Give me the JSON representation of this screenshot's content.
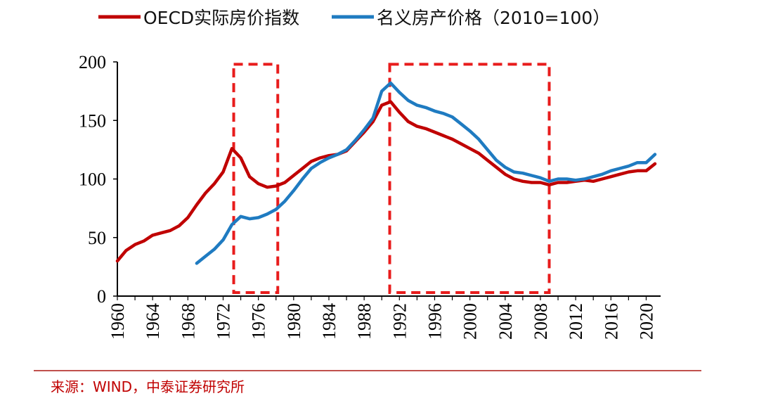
{
  "chart_data": {
    "type": "line",
    "ylim": [
      0,
      200
    ],
    "yticks": [
      "0",
      "50",
      "100",
      "150",
      "200"
    ],
    "xlim": [
      1960,
      2021
    ],
    "xticks": [
      "1960",
      "1964",
      "1968",
      "1972",
      "1976",
      "1980",
      "1984",
      "1988",
      "1992",
      "1996",
      "2000",
      "2004",
      "2008",
      "2012",
      "2016",
      "2020"
    ],
    "legend_position": "top",
    "series": [
      {
        "name": "OECD实际房价指数",
        "color": "#c00000",
        "points": [
          [
            1960,
            30
          ],
          [
            1961,
            39
          ],
          [
            1962,
            44
          ],
          [
            1963,
            47
          ],
          [
            1964,
            52
          ],
          [
            1965,
            54
          ],
          [
            1966,
            56
          ],
          [
            1967,
            60
          ],
          [
            1968,
            67
          ],
          [
            1969,
            78
          ],
          [
            1970,
            88
          ],
          [
            1971,
            96
          ],
          [
            1972,
            106
          ],
          [
            1973,
            126
          ],
          [
            1974,
            118
          ],
          [
            1975,
            102
          ],
          [
            1976,
            96
          ],
          [
            1977,
            93
          ],
          [
            1978,
            94
          ],
          [
            1979,
            97
          ],
          [
            1980,
            103
          ],
          [
            1981,
            109
          ],
          [
            1982,
            115
          ],
          [
            1983,
            118
          ],
          [
            1984,
            120
          ],
          [
            1985,
            121
          ],
          [
            1986,
            124
          ],
          [
            1987,
            132
          ],
          [
            1988,
            140
          ],
          [
            1989,
            149
          ],
          [
            1990,
            163
          ],
          [
            1991,
            166
          ],
          [
            1992,
            157
          ],
          [
            1993,
            149
          ],
          [
            1994,
            145
          ],
          [
            1995,
            143
          ],
          [
            1996,
            140
          ],
          [
            1997,
            137
          ],
          [
            1998,
            134
          ],
          [
            1999,
            130
          ],
          [
            2000,
            126
          ],
          [
            2001,
            122
          ],
          [
            2002,
            116
          ],
          [
            2003,
            110
          ],
          [
            2004,
            104
          ],
          [
            2005,
            100
          ],
          [
            2006,
            98
          ],
          [
            2007,
            97
          ],
          [
            2008,
            97
          ],
          [
            2009,
            95
          ],
          [
            2010,
            97
          ],
          [
            2011,
            97
          ],
          [
            2012,
            98
          ],
          [
            2013,
            99
          ],
          [
            2014,
            98
          ],
          [
            2015,
            100
          ],
          [
            2016,
            102
          ],
          [
            2017,
            104
          ],
          [
            2018,
            106
          ],
          [
            2019,
            107
          ],
          [
            2020,
            107
          ],
          [
            2021,
            113
          ]
        ]
      },
      {
        "name": "名义房产价格（2010=100）",
        "color": "#1f7bc1",
        "points": [
          [
            1969,
            28
          ],
          [
            1970,
            34
          ],
          [
            1971,
            40
          ],
          [
            1972,
            48
          ],
          [
            1973,
            61
          ],
          [
            1974,
            68
          ],
          [
            1975,
            66
          ],
          [
            1976,
            67
          ],
          [
            1977,
            70
          ],
          [
            1978,
            74
          ],
          [
            1979,
            81
          ],
          [
            1980,
            90
          ],
          [
            1981,
            100
          ],
          [
            1982,
            109
          ],
          [
            1983,
            114
          ],
          [
            1984,
            118
          ],
          [
            1985,
            121
          ],
          [
            1986,
            125
          ],
          [
            1987,
            133
          ],
          [
            1988,
            142
          ],
          [
            1989,
            152
          ],
          [
            1990,
            175
          ],
          [
            1991,
            182
          ],
          [
            1992,
            174
          ],
          [
            1993,
            167
          ],
          [
            1994,
            163
          ],
          [
            1995,
            161
          ],
          [
            1996,
            158
          ],
          [
            1997,
            156
          ],
          [
            1998,
            153
          ],
          [
            1999,
            147
          ],
          [
            2000,
            141
          ],
          [
            2001,
            134
          ],
          [
            2002,
            125
          ],
          [
            2003,
            116
          ],
          [
            2004,
            110
          ],
          [
            2005,
            106
          ],
          [
            2006,
            105
          ],
          [
            2007,
            103
          ],
          [
            2008,
            101
          ],
          [
            2009,
            98
          ],
          [
            2010,
            100
          ],
          [
            2011,
            100
          ],
          [
            2012,
            99
          ],
          [
            2013,
            100
          ],
          [
            2014,
            102
          ],
          [
            2015,
            104
          ],
          [
            2016,
            107
          ],
          [
            2017,
            109
          ],
          [
            2018,
            111
          ],
          [
            2019,
            114
          ],
          [
            2020,
            114
          ],
          [
            2021,
            121
          ]
        ]
      }
    ],
    "highlight_boxes": [
      {
        "x_from": 1973.2,
        "x_to": 1978.2,
        "y_from": 3,
        "y_to": 198
      },
      {
        "x_from": 1990.9,
        "x_to": 2009.0,
        "y_from": 3,
        "y_to": 198
      }
    ]
  },
  "source": "来源：WIND，中泰证券研究所"
}
